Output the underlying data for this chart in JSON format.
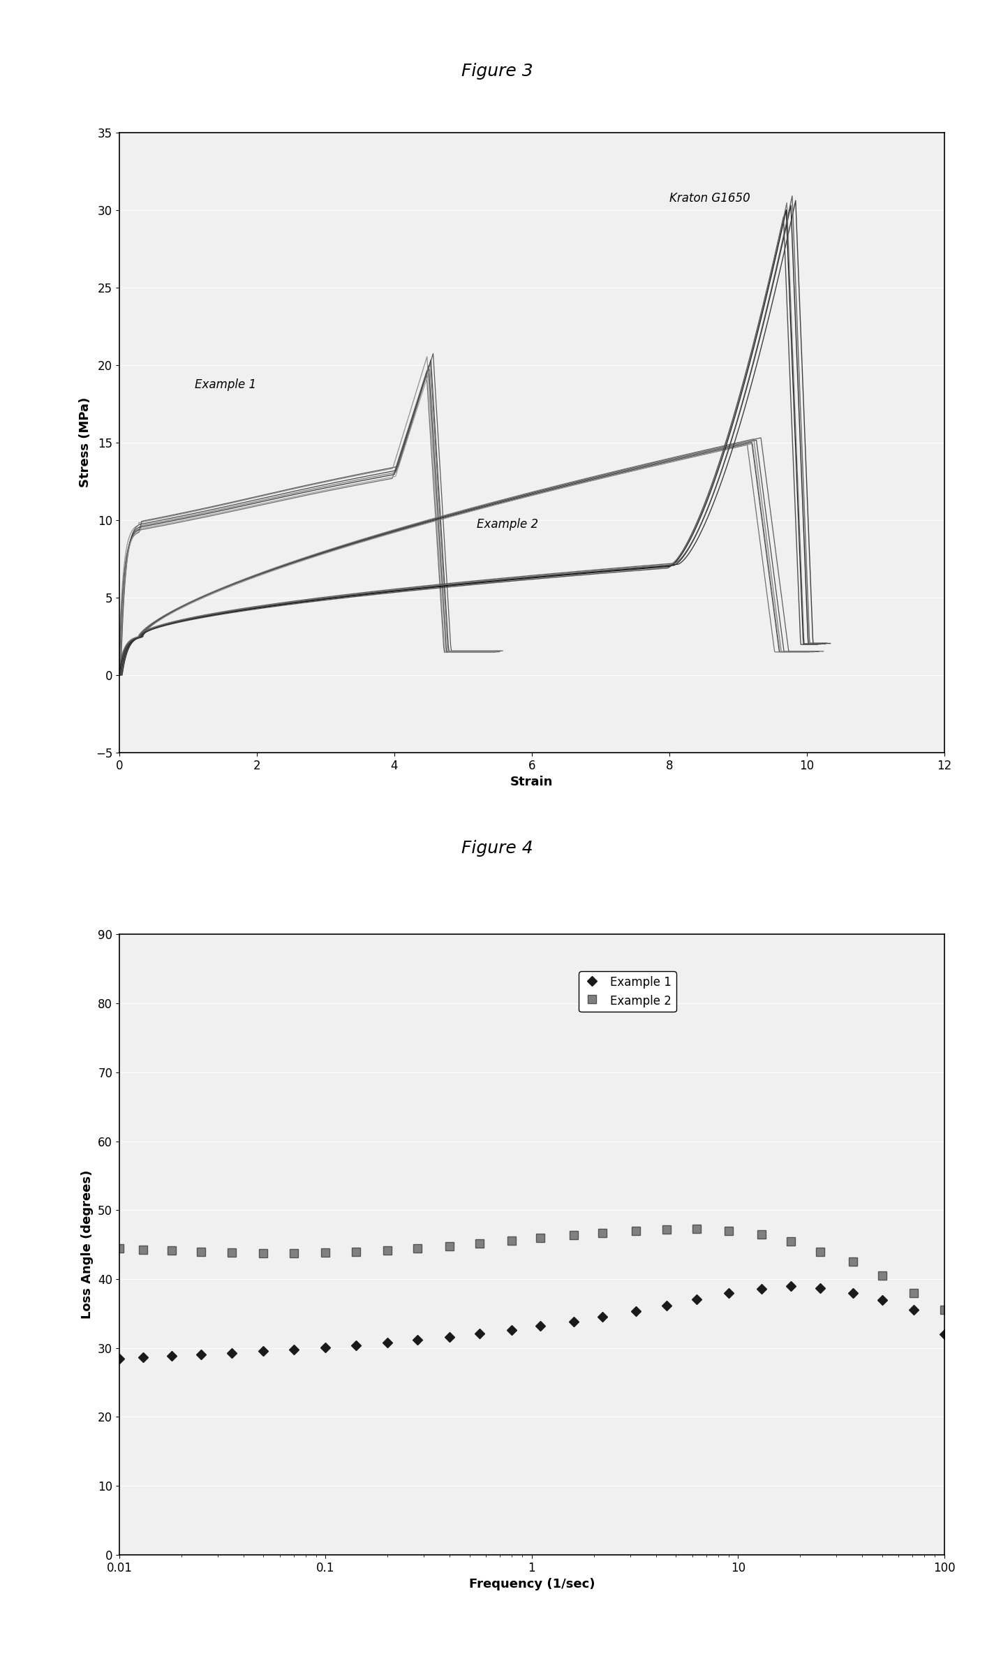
{
  "fig3_title": "Figure 3",
  "fig4_title": "Figure 4",
  "fig3_xlabel": "Strain",
  "fig3_ylabel": "Stress (MPa)",
  "fig3_xlim": [
    0,
    12
  ],
  "fig3_ylim": [
    -5,
    35
  ],
  "fig3_xticks": [
    0,
    2,
    4,
    6,
    8,
    10,
    12
  ],
  "fig3_yticks": [
    -5,
    0,
    5,
    10,
    15,
    20,
    25,
    30,
    35
  ],
  "fig4_xlabel": "Frequency (1/sec)",
  "fig4_ylabel": "Loss Angle (degrees)",
  "fig4_ylim": [
    0,
    90
  ],
  "fig4_yticks": [
    0,
    10,
    20,
    30,
    40,
    50,
    60,
    70,
    80,
    90
  ],
  "background_color": "#ffffff",
  "plot_bg_color": "#f0f0f0",
  "annotation_fontsize": 12,
  "title_fontsize": 18,
  "axis_label_fontsize": 13,
  "tick_fontsize": 12,
  "fig3_annotation_ex1": "Example 1",
  "fig3_annotation_ex2": "Example 2",
  "fig3_annotation_kraton": "Kraton G1650",
  "freq_pts": [
    0.01,
    0.013,
    0.018,
    0.025,
    0.035,
    0.05,
    0.07,
    0.1,
    0.14,
    0.2,
    0.28,
    0.4,
    0.56,
    0.8,
    1.1,
    1.6,
    2.2,
    3.2,
    4.5,
    6.3,
    9.0,
    13.0,
    18.0,
    25.0,
    36.0,
    50.0,
    71.0,
    100.0
  ],
  "ex1_angles": [
    28.5,
    28.7,
    28.9,
    29.1,
    29.3,
    29.6,
    29.8,
    30.1,
    30.4,
    30.8,
    31.2,
    31.6,
    32.1,
    32.6,
    33.2,
    33.8,
    34.5,
    35.3,
    36.2,
    37.1,
    38.0,
    38.6,
    39.0,
    38.7,
    38.0,
    37.0,
    35.5,
    32.0
  ],
  "ex2_angles": [
    44.5,
    44.3,
    44.2,
    44.0,
    43.9,
    43.8,
    43.8,
    43.9,
    44.0,
    44.2,
    44.5,
    44.8,
    45.2,
    45.6,
    46.0,
    46.4,
    46.7,
    47.0,
    47.2,
    47.3,
    47.0,
    46.5,
    45.5,
    44.0,
    42.5,
    40.5,
    38.0,
    35.5
  ]
}
